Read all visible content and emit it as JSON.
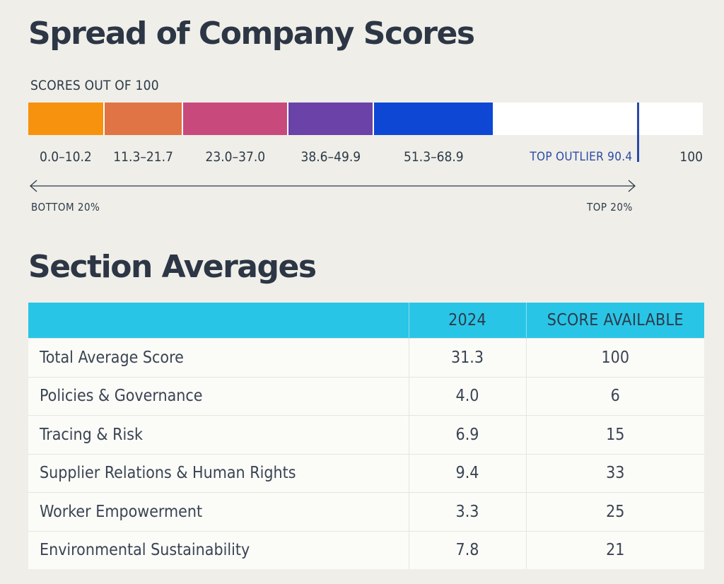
{
  "headings": {
    "spread_title": "Spread of Company Scores",
    "averages_title": "Section Averages"
  },
  "chart_data": {
    "type": "bar",
    "title": "Spread of Company Scores",
    "scale_label": "SCORES OUT OF 100",
    "xlim": [
      0,
      100
    ],
    "max_label": "100",
    "ranges": [
      {
        "label": "0.0–10.2",
        "start": 0.0,
        "end": 10.2,
        "color": "#f7920e"
      },
      {
        "label": "11.3–21.7",
        "start": 11.3,
        "end": 21.7,
        "color": "#e07444"
      },
      {
        "label": "23.0–37.0",
        "start": 23.0,
        "end": 37.0,
        "color": "#c84a7c"
      },
      {
        "label": "38.6–49.9",
        "start": 38.6,
        "end": 49.9,
        "color": "#6a42a8"
      },
      {
        "label": "51.3–68.9",
        "start": 51.3,
        "end": 68.9,
        "color": "#0d47d4"
      }
    ],
    "outlier": {
      "label": "TOP OUTLIER 90.4",
      "value": 90.4,
      "color": "#2b4aa8"
    },
    "arrow": {
      "left_label": "BOTTOM 20%",
      "right_label": "TOP 20%"
    }
  },
  "table": {
    "columns": [
      "",
      "2024",
      "SCORE AVAILABLE"
    ],
    "rows": [
      [
        "Total Average Score",
        "31.3",
        "100"
      ],
      [
        "Policies & Governance",
        "4.0",
        "6"
      ],
      [
        "Tracing & Risk",
        "6.9",
        "15"
      ],
      [
        "Supplier Relations & Human Rights",
        "9.4",
        "33"
      ],
      [
        "Worker Empowerment",
        "3.3",
        "25"
      ],
      [
        "Environmental Sustainability",
        "7.8",
        "21"
      ]
    ]
  }
}
